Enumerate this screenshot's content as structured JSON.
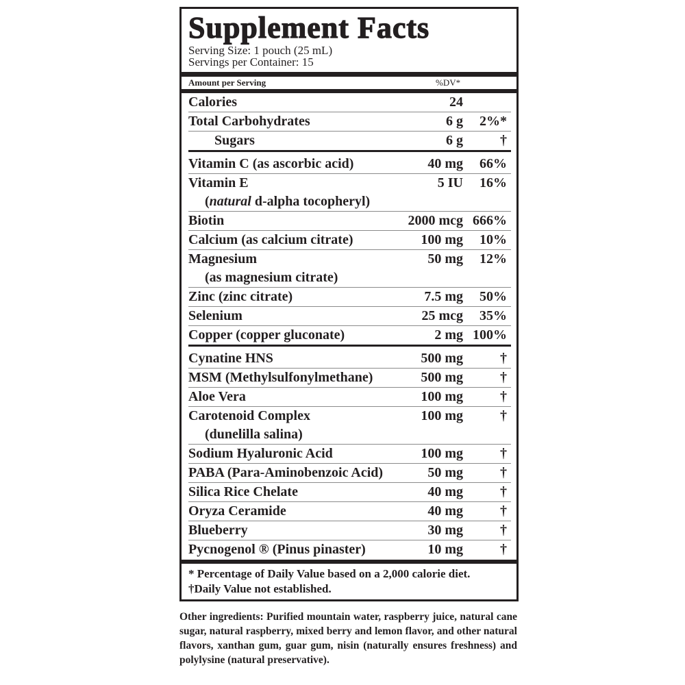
{
  "title": "Supplement Facts",
  "serving_size": "Serving Size: 1 pouch (25 mL)",
  "servings_per_container": "Servings per Container: 15",
  "header": {
    "amount_per_serving": "Amount per Serving",
    "dv": "%DV*"
  },
  "rows": [
    {
      "name": "Calories",
      "amount": "24",
      "dv": ""
    },
    {
      "name": "Total Carbohydrates",
      "amount": "6 g",
      "dv": "2%*"
    },
    {
      "name": "Sugars",
      "amount": "6 g",
      "dv": "†"
    },
    {
      "name": "Vitamin C (as ascorbic acid)",
      "amount": "40 mg",
      "dv": "66%"
    },
    {
      "name": "Vitamin E",
      "sub_italic": "natural",
      "sub": " d-alpha tocopheryl)",
      "sub_open": "(",
      "amount": "5 IU",
      "dv": "16%"
    },
    {
      "name": "Biotin",
      "amount": "2000 mcg",
      "dv": "666%"
    },
    {
      "name": "Calcium (as calcium citrate)",
      "amount": "100 mg",
      "dv": "10%"
    },
    {
      "name": "Magnesium",
      "sub": "(as magnesium citrate)",
      "amount": "50 mg",
      "dv": "12%"
    },
    {
      "name": "Zinc (zinc citrate)",
      "amount": "7.5 mg",
      "dv": "50%"
    },
    {
      "name": "Selenium",
      "amount": "25 mcg",
      "dv": "35%"
    },
    {
      "name": "Copper (copper gluconate)",
      "amount": "2 mg",
      "dv": "100%"
    },
    {
      "name": "Cynatine HNS",
      "amount": "500 mg",
      "dv": "†"
    },
    {
      "name": "MSM (Methylsulfonylmethane)",
      "amount": "500 mg",
      "dv": "†"
    },
    {
      "name": "Aloe Vera",
      "amount": "100 mg",
      "dv": "†"
    },
    {
      "name": "Carotenoid Complex",
      "sub": "(dunelilla salina)",
      "amount": "100 mg",
      "dv": "†"
    },
    {
      "name": "Sodium Hyaluronic Acid",
      "amount": "100 mg",
      "dv": "†"
    },
    {
      "name": "PABA (Para-Aminobenzoic Acid)",
      "amount": "50 mg",
      "dv": "†"
    },
    {
      "name": "Silica Rice Chelate",
      "amount": "40 mg",
      "dv": "†"
    },
    {
      "name": "Oryza Ceramide",
      "amount": "40 mg",
      "dv": "†"
    },
    {
      "name": "Blueberry",
      "amount": "30 mg",
      "dv": "†"
    },
    {
      "name": "Pycnogenol ® (Pinus pinaster)",
      "amount": "10 mg",
      "dv": "†"
    }
  ],
  "footnotes": [
    "* Percentage of Daily Value based on a 2,000 calorie diet.",
    "†Daily Value not established."
  ],
  "other_ingredients": "Other ingredients: Purified mountain water, raspberry juice, natural cane sugar, natural raspberry, mixed berry and lemon flavor, and other natural flavors, xanthan gum, guar gum, nisin (naturally ensures freshness) and polylysine (natural preservative)."
}
